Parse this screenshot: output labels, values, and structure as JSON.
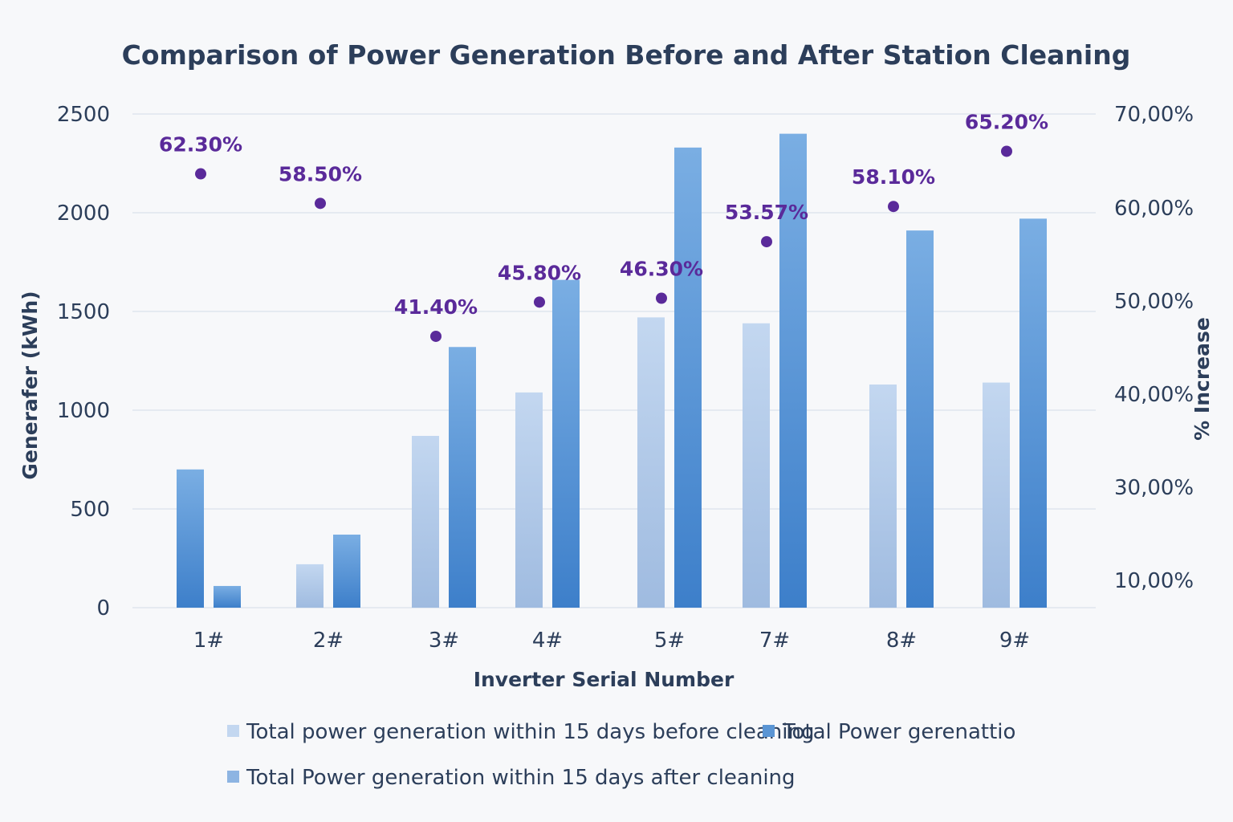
{
  "chart_data": {
    "type": "bar",
    "title": "Comparison of Power Generation Before and After Station Cleaning",
    "xlabel": "Inverter Serial Number",
    "ylabel": "Generafer  (kWh)",
    "y2label": "% Increase",
    "categories": [
      "1#",
      "2#",
      "3#",
      "4#",
      "5#",
      "7#",
      "8#",
      "9#"
    ],
    "ylim": [
      0,
      2500
    ],
    "yticks": [
      "0",
      "500",
      "1000",
      "1500",
      "2000",
      "2500"
    ],
    "y2ticks": [
      "10,00%",
      "30,00%",
      "40,00%",
      "50,00%",
      "60,00%",
      "70,00%"
    ],
    "series": [
      {
        "name": "Total power generation within 15 days before cleaning",
        "values": [
          700,
          220,
          870,
          1090,
          1470,
          1440,
          1130,
          1140
        ],
        "color": "#b8cfec"
      },
      {
        "name": "Total Power generation within 15 days after cleaning",
        "values": [
          110,
          370,
          1320,
          1660,
          2330,
          2400,
          1910,
          1970
        ],
        "color": "#4a8ad0"
      },
      {
        "name": "% Increase",
        "values": [
          62.3,
          58.5,
          41.4,
          45.8,
          46.3,
          53.57,
          58.1,
          65.2
        ],
        "labels": [
          "62.30%",
          "58.50%",
          "41.40%",
          "45.80%",
          "46.30%",
          "53.57%",
          "58.10%",
          "65.20%"
        ],
        "color": "#5a2a9a"
      }
    ],
    "legend": {
      "position": "bottom",
      "entries": [
        "Total power generation within 15 days before cleaning",
        "Total Power gerenattio",
        "Total Power generation within 15 days after cleaning"
      ]
    }
  }
}
